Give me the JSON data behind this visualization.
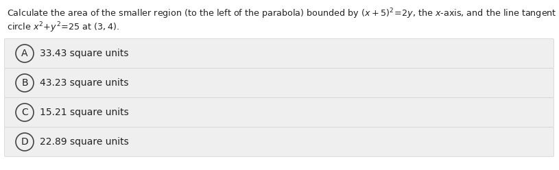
{
  "question_line1": "Calculate the area of the smaller region (to the left of the parabola) bounded by $(x+5)^2=2y$, the $x$-axis, and the line tangent to the",
  "question_line2": "circle $x^2+y^2=25$ at $(3,4)$.",
  "options": [
    {
      "label": "A",
      "text": "33.43 square units"
    },
    {
      "label": "B",
      "text": "43.23 square units"
    },
    {
      "label": "C",
      "text": "15.21 square units"
    },
    {
      "label": "D",
      "text": "22.89 square units"
    }
  ],
  "bg_color": "#ffffff",
  "option_bg_color": "#efefef",
  "option_border_color": "#d0d0d0",
  "text_color": "#222222",
  "circle_edge_color": "#444444",
  "question_fontsize": 9.2,
  "option_fontsize": 10.0,
  "label_fontsize": 10.0
}
